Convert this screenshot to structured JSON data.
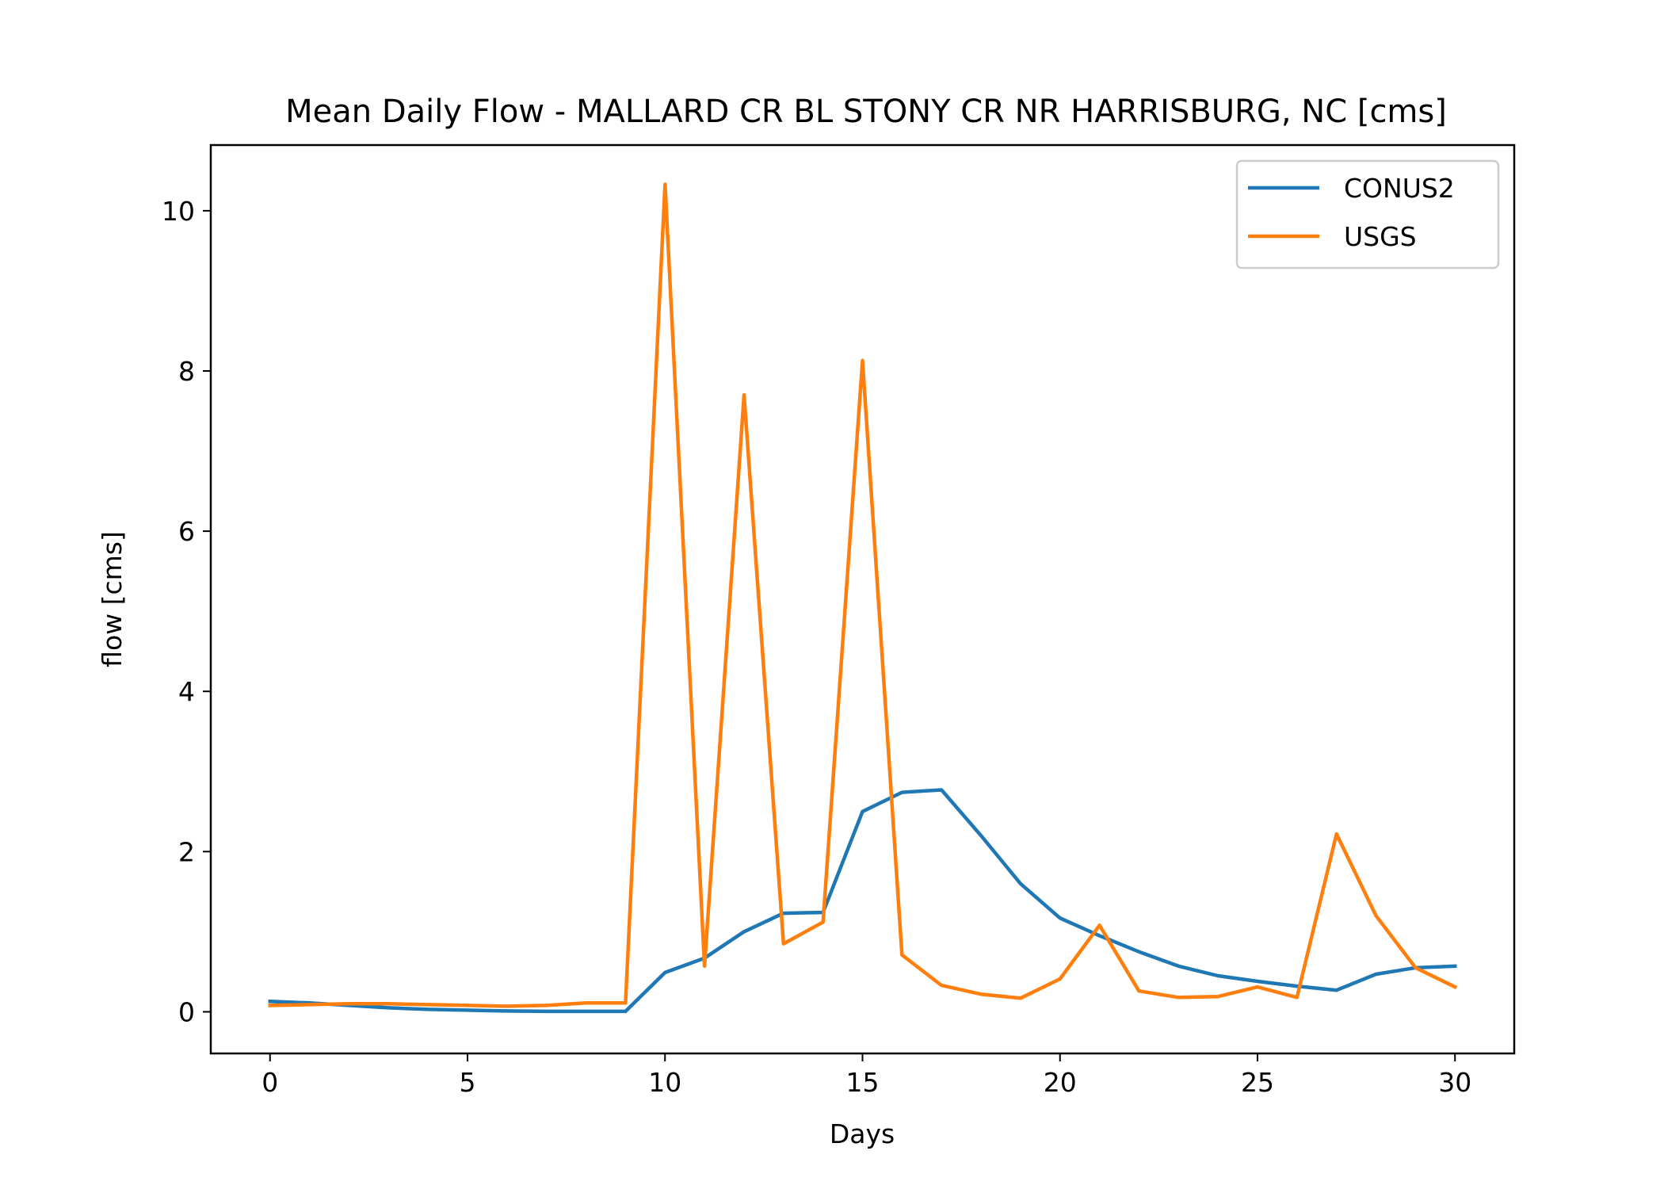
{
  "chart_data": {
    "type": "line",
    "title": "Mean Daily Flow - MALLARD CR BL STONY CR NR HARRISBURG, NC [cms]",
    "xlabel": "Days",
    "ylabel": "flow [cms]",
    "xlim": [
      -1.5,
      31.5
    ],
    "ylim": [
      -0.52,
      10.82
    ],
    "xticks": [
      0,
      5,
      10,
      15,
      20,
      25,
      30
    ],
    "yticks": [
      0,
      2,
      4,
      6,
      8,
      10
    ],
    "grid": false,
    "legend_position": "top-right",
    "x": [
      0,
      1,
      2,
      3,
      4,
      5,
      6,
      7,
      8,
      9,
      10,
      11,
      12,
      13,
      14,
      15,
      16,
      17,
      18,
      19,
      20,
      21,
      22,
      23,
      24,
      25,
      26,
      27,
      28,
      29,
      30
    ],
    "series": [
      {
        "name": "CONUS2",
        "color": "#1f77b4",
        "values": [
          0.13,
          0.11,
          0.08,
          0.05,
          0.03,
          0.02,
          0.01,
          0.005,
          0.005,
          0.005,
          0.49,
          0.67,
          1.0,
          1.23,
          1.24,
          2.5,
          2.74,
          2.77,
          2.2,
          1.6,
          1.17,
          0.95,
          0.75,
          0.57,
          0.45,
          0.38,
          0.32,
          0.27,
          0.47,
          0.55,
          0.57
        ]
      },
      {
        "name": "USGS",
        "color": "#ff7f0e",
        "values": [
          0.08,
          0.09,
          0.1,
          0.1,
          0.09,
          0.08,
          0.07,
          0.08,
          0.11,
          0.11,
          10.33,
          0.57,
          7.7,
          0.85,
          1.12,
          8.13,
          0.71,
          0.33,
          0.22,
          0.17,
          0.41,
          1.08,
          0.26,
          0.18,
          0.19,
          0.31,
          0.18,
          2.22,
          1.2,
          0.55,
          0.31
        ]
      }
    ]
  }
}
